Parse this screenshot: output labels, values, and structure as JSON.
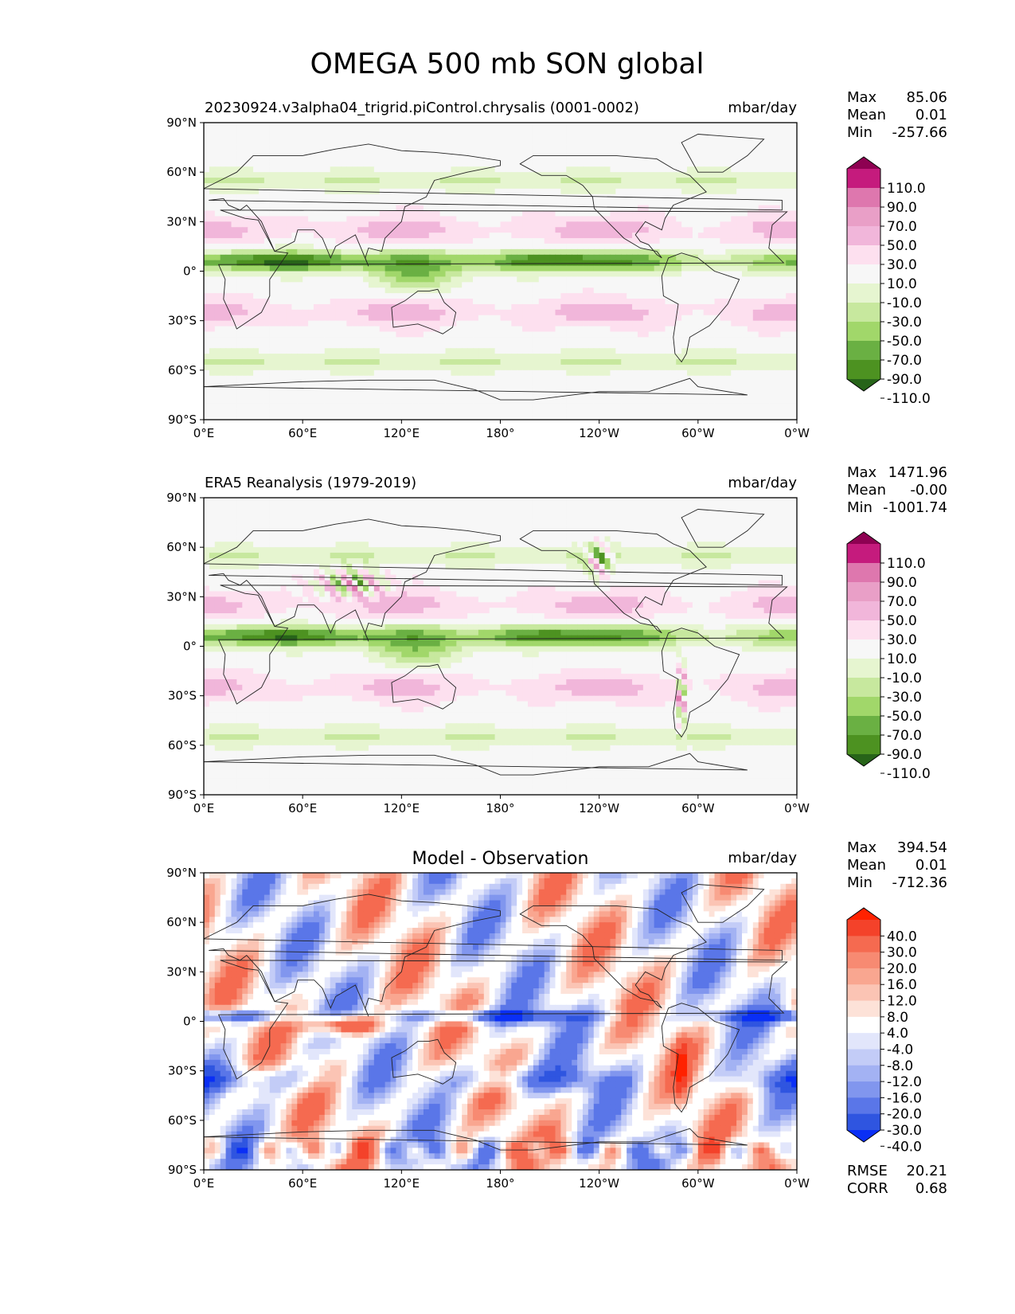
{
  "figure": {
    "title": "OMEGA 500 mb SON global"
  },
  "axes": {
    "xticks": [
      "0°E",
      "60°E",
      "120°E",
      "180°",
      "120°W",
      "60°W",
      "0°W"
    ],
    "yticks": [
      "90°N",
      "60°N",
      "30°N",
      "0°",
      "30°S",
      "60°S",
      "90°S"
    ]
  },
  "chart_data": [
    {
      "type": "heatmap",
      "panel": "model",
      "title": "20230924.v3alpha04_trigrid.piControl.chrysalis (0001-0002)",
      "units": "mbar/day",
      "stats": [
        {
          "label": "Max",
          "value": "85.06"
        },
        {
          "label": "Mean",
          "value": "0.01"
        },
        {
          "label": "Min",
          "value": "-257.66"
        }
      ],
      "colorbar": {
        "labels": [
          "110.0",
          "90.0",
          "70.0",
          "50.0",
          "30.0",
          "10.0",
          "-10.0",
          "-30.0",
          "-50.0",
          "-70.0",
          "-90.0",
          "-110.0"
        ],
        "colors": [
          "#8e0152",
          "#c51b7d",
          "#de77ae",
          "#e99fc7",
          "#f1b6da",
          "#fde0ef",
          "#f7f7f7",
          "#e6f5d0",
          "#c7e89e",
          "#a1d76a",
          "#6ab043",
          "#4d9221",
          "#276419"
        ]
      }
    },
    {
      "type": "heatmap",
      "panel": "observation",
      "title": "ERA5 Reanalysis (1979-2019)",
      "units": "mbar/day",
      "stats": [
        {
          "label": "Max",
          "value": "1471.96"
        },
        {
          "label": "Mean",
          "value": "-0.00"
        },
        {
          "label": "Min",
          "value": "-1001.74"
        }
      ],
      "colorbar": {
        "labels": [
          "110.0",
          "90.0",
          "70.0",
          "50.0",
          "30.0",
          "10.0",
          "-10.0",
          "-30.0",
          "-50.0",
          "-70.0",
          "-90.0",
          "-110.0"
        ],
        "colors": [
          "#8e0152",
          "#c51b7d",
          "#de77ae",
          "#e99fc7",
          "#f1b6da",
          "#fde0ef",
          "#f7f7f7",
          "#e6f5d0",
          "#c7e89e",
          "#a1d76a",
          "#6ab043",
          "#4d9221",
          "#276419"
        ]
      }
    },
    {
      "type": "heatmap",
      "panel": "difference",
      "title": "Model - Observation",
      "units": "mbar/day",
      "stats": [
        {
          "label": "Max",
          "value": "394.54"
        },
        {
          "label": "Mean",
          "value": "0.01"
        },
        {
          "label": "Min",
          "value": "-712.36"
        }
      ],
      "metrics": [
        {
          "label": "RMSE",
          "value": "20.21"
        },
        {
          "label": "CORR",
          "value": "0.68"
        }
      ],
      "colorbar": {
        "labels": [
          "40.0",
          "30.0",
          "20.0",
          "16.0",
          "12.0",
          "8.0",
          "4.0",
          "-4.0",
          "-8.0",
          "-12.0",
          "-16.0",
          "-20.0",
          "-30.0",
          "-40.0"
        ],
        "colors": [
          "#ff2200",
          "#f4422a",
          "#f56a50",
          "#f78a72",
          "#f9a690",
          "#fbc4b4",
          "#fde2d8",
          "#ffffff",
          "#e2e6fb",
          "#c3ccf7",
          "#a3b2f3",
          "#8196ee",
          "#5a76e8",
          "#2f55e0",
          "#0a2ff5"
        ]
      }
    }
  ]
}
